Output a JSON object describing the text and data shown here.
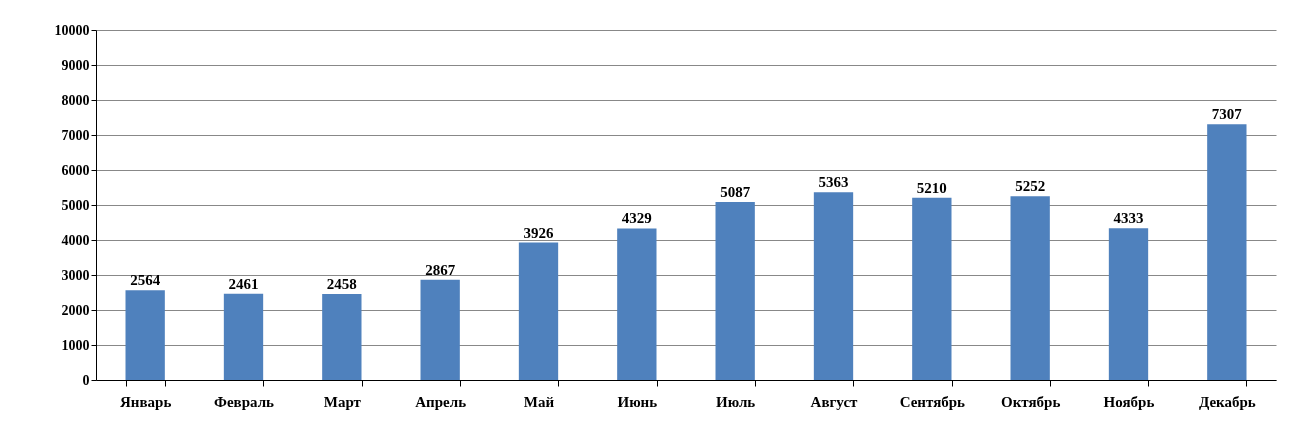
{
  "chart_data": {
    "type": "bar",
    "categories": [
      "Январь",
      "Февраль",
      "Март",
      "Апрель",
      "Май",
      "Июнь",
      "Июль",
      "Август",
      "Сентябрь",
      "Октябрь",
      "Ноябрь",
      "Декабрь"
    ],
    "values": [
      2564,
      2461,
      2458,
      2867,
      3926,
      4329,
      5087,
      5363,
      5210,
      5252,
      4333,
      7307
    ],
    "color": "#4f81bd",
    "ylim": [
      0,
      10000
    ],
    "yticks": [
      0,
      1000,
      2000,
      3000,
      4000,
      5000,
      6000,
      7000,
      8000,
      9000,
      10000
    ],
    "grid": "y",
    "data_labels": true
  }
}
